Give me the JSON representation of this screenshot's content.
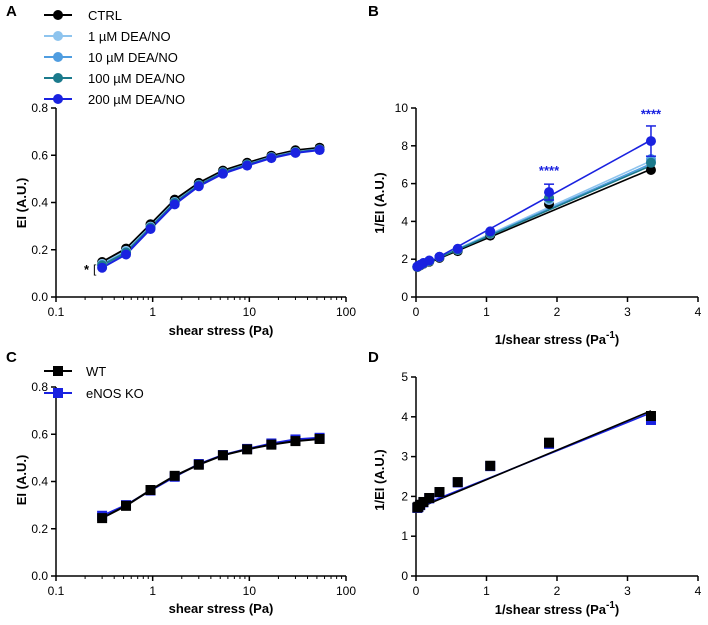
{
  "figure": {
    "panels": [
      "A",
      "B",
      "C",
      "D"
    ]
  },
  "colors": {
    "ctrl": "#000000",
    "dea1": "#8ec4ee",
    "dea10": "#4f9de0",
    "dea100": "#1b7a8c",
    "dea200": "#1a22e0",
    "wt": "#000000",
    "enos": "#1a22e0"
  },
  "chart_data": [
    {
      "panel": "A",
      "type": "line",
      "xscale": "log",
      "xlabel": "shear stress (Pa)",
      "ylabel": "EI (A.U.)",
      "xlim": [
        0.1,
        100
      ],
      "ylim": [
        0.0,
        0.8
      ],
      "xticks": [
        0.1,
        1,
        10,
        100
      ],
      "xtick_labels": [
        "0.1",
        "1",
        "10",
        "100"
      ],
      "yticks": [
        0.0,
        0.2,
        0.4,
        0.6,
        0.8
      ],
      "ytick_labels": [
        "0.0",
        "0.2",
        "0.4",
        "0.6",
        "0.8"
      ],
      "x": [
        0.3,
        0.53,
        0.95,
        1.69,
        3.0,
        5.33,
        9.49,
        16.9,
        30,
        53.3
      ],
      "series": [
        {
          "name": "CTRL",
          "color_key": "ctrl",
          "marker": "circle",
          "values": [
            0.148,
            0.205,
            0.308,
            0.412,
            0.483,
            0.535,
            0.568,
            0.598,
            0.621,
            0.632
          ]
        },
        {
          "name": "1 µM DEA/NO",
          "color_key": "dea1",
          "marker": "circle",
          "values": [
            0.14,
            0.195,
            0.298,
            0.402,
            0.475,
            0.528,
            0.561,
            0.592,
            0.614,
            0.625
          ]
        },
        {
          "name": "10 µM DEA/NO",
          "color_key": "dea10",
          "marker": "circle",
          "values": [
            0.136,
            0.19,
            0.295,
            0.4,
            0.474,
            0.527,
            0.56,
            0.591,
            0.613,
            0.624
          ]
        },
        {
          "name": "100 µM DEA/NO",
          "color_key": "dea100",
          "marker": "circle",
          "values": [
            0.134,
            0.188,
            0.293,
            0.398,
            0.473,
            0.526,
            0.559,
            0.59,
            0.612,
            0.624
          ]
        },
        {
          "name": "200 µM DEA/NO",
          "color_key": "dea200",
          "marker": "circle",
          "values": [
            0.124,
            0.18,
            0.288,
            0.392,
            0.469,
            0.522,
            0.556,
            0.588,
            0.61,
            0.622
          ]
        }
      ],
      "annotation": {
        "text": "*",
        "bracket": "[",
        "x": 0.3
      }
    },
    {
      "panel": "B",
      "type": "scatter",
      "xlabel_main": "1/shear stress (Pa",
      "xlabel_sup": "-1",
      "xlabel_close": ")",
      "ylabel": "1/EI (A.U.)",
      "xlim": [
        0,
        4
      ],
      "ylim": [
        0,
        10
      ],
      "xticks": [
        0,
        1,
        2,
        3,
        4
      ],
      "xtick_labels": [
        "0",
        "1",
        "2",
        "3",
        "4"
      ],
      "yticks": [
        0,
        2,
        4,
        6,
        8,
        10
      ],
      "ytick_labels": [
        "0",
        "2",
        "4",
        "6",
        "8",
        "10"
      ],
      "x": [
        0.019,
        0.033,
        0.059,
        0.105,
        0.188,
        0.333,
        0.592,
        1.053,
        1.887,
        3.333
      ],
      "series": [
        {
          "name": "CTRL",
          "color_key": "ctrl",
          "values": [
            1.58,
            1.62,
            1.67,
            1.76,
            1.87,
            2.07,
            2.43,
            3.25,
            4.92,
            6.72
          ],
          "fit": [
            1.52,
            6.76
          ]
        },
        {
          "name": "1 µM DEA/NO",
          "color_key": "dea1",
          "values": [
            1.6,
            1.63,
            1.69,
            1.78,
            1.9,
            2.11,
            2.49,
            3.35,
            5.13,
            7.2
          ],
          "fit": [
            1.55,
            7.2
          ]
        },
        {
          "name": "10 µM DEA/NO",
          "color_key": "dea10",
          "values": [
            1.6,
            1.64,
            1.69,
            1.78,
            1.9,
            2.11,
            2.5,
            3.37,
            5.2,
            7.3
          ],
          "fit": [
            1.55,
            7.05
          ]
        },
        {
          "name": "100 µM DEA/NO",
          "color_key": "dea100",
          "values": [
            1.6,
            1.64,
            1.69,
            1.79,
            1.91,
            2.12,
            2.5,
            3.38,
            5.25,
            7.1
          ],
          "fit": [
            1.55,
            6.95
          ]
        },
        {
          "name": "200 µM DEA/NO",
          "color_key": "dea200",
          "values": [
            1.61,
            1.65,
            1.7,
            1.8,
            1.93,
            2.13,
            2.55,
            3.47,
            5.55,
            8.25
          ],
          "errors": [
            0,
            0,
            0,
            0,
            0,
            0,
            0,
            0,
            0.42,
            0.8
          ],
          "fit": [
            1.45,
            8.3
          ]
        }
      ],
      "annotations": [
        {
          "text": "****",
          "x": 1.887,
          "y": 6.45
        },
        {
          "text": "****",
          "x": 3.333,
          "y": 9.45
        }
      ]
    },
    {
      "panel": "C",
      "type": "line",
      "xscale": "log",
      "xlabel": "shear stress (Pa)",
      "ylabel": "EI (A.U.)",
      "xlim": [
        0.1,
        100
      ],
      "ylim": [
        0.0,
        0.8
      ],
      "xticks": [
        0.1,
        1,
        10,
        100
      ],
      "xtick_labels": [
        "0.1",
        "1",
        "10",
        "100"
      ],
      "yticks": [
        0.0,
        0.2,
        0.4,
        0.6,
        0.8
      ],
      "ytick_labels": [
        "0.0",
        "0.2",
        "0.4",
        "0.6",
        "0.8"
      ],
      "x": [
        0.3,
        0.53,
        0.95,
        1.69,
        3.0,
        5.33,
        9.49,
        16.9,
        30,
        53.3
      ],
      "series": [
        {
          "name": "eNOS KO",
          "color_key": "enos",
          "marker": "square",
          "values": [
            0.255,
            0.3,
            0.362,
            0.42,
            0.474,
            0.512,
            0.538,
            0.561,
            0.578,
            0.585
          ]
        },
        {
          "name": "WT",
          "color_key": "wt",
          "marker": "square",
          "values": [
            0.245,
            0.297,
            0.364,
            0.424,
            0.471,
            0.511,
            0.536,
            0.556,
            0.571,
            0.58
          ]
        }
      ],
      "legend_order": [
        "WT",
        "eNOS KO"
      ]
    },
    {
      "panel": "D",
      "type": "scatter",
      "xlabel_main": "1/shear stress (Pa",
      "xlabel_sup": "-1",
      "xlabel_close": ")",
      "ylabel": "1/EI (A.U.)",
      "xlim": [
        0,
        4
      ],
      "ylim": [
        0,
        5
      ],
      "xticks": [
        0,
        1,
        2,
        3,
        4
      ],
      "xtick_labels": [
        "0",
        "1",
        "2",
        "3",
        "4"
      ],
      "yticks": [
        0,
        1,
        2,
        3,
        4,
        5
      ],
      "ytick_labels": [
        "0",
        "1",
        "2",
        "3",
        "4",
        "5"
      ],
      "x": [
        0.019,
        0.033,
        0.059,
        0.105,
        0.188,
        0.333,
        0.592,
        1.053,
        1.887,
        3.333
      ],
      "series": [
        {
          "name": "eNOS KO",
          "color_key": "enos",
          "marker": "square",
          "values": [
            1.71,
            1.73,
            1.78,
            1.85,
            1.95,
            2.1,
            2.35,
            2.76,
            3.32,
            3.92
          ],
          "fit": [
            1.72,
            4.1
          ]
        },
        {
          "name": "WT",
          "color_key": "wt",
          "marker": "square",
          "values": [
            1.72,
            1.74,
            1.79,
            1.86,
            1.96,
            2.11,
            2.36,
            2.77,
            3.35,
            4.02
          ],
          "fit": [
            1.68,
            4.15
          ]
        }
      ]
    }
  ]
}
